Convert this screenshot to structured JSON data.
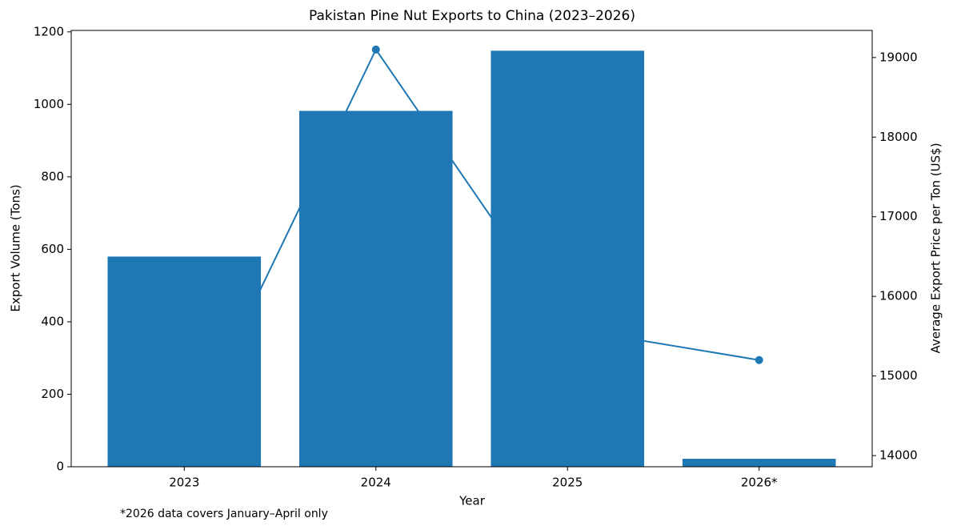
{
  "chart_data": {
    "type": "bar",
    "title": "Pakistan Pine Nut Exports to China (2023–2026)",
    "x_label": "Year",
    "y_label": "Export Volume (Tons)",
    "y2_label": "Average Export Price per Ton (US$)",
    "note": "*2026 data covers January–April only",
    "categories": [
      "2023",
      "2024",
      "2025",
      "2026*"
    ],
    "series": [
      {
        "type": "bar",
        "color": "#1f77b4",
        "values": [
          580,
          982,
          1148,
          22
        ]
      },
      {
        "type": "line",
        "axis": "y2",
        "color": "#1f77b4",
        "values": [
          14100,
          19100,
          15600,
          15200
        ]
      }
    ],
    "ylim": [
      0,
      1204
    ],
    "yticks": [
      0,
      200,
      400,
      600,
      800,
      1000,
      1200
    ],
    "y2lim": [
      13860,
      19340
    ],
    "y2ticks": [
      14000,
      15000,
      16000,
      17000,
      18000,
      19000
    ]
  }
}
